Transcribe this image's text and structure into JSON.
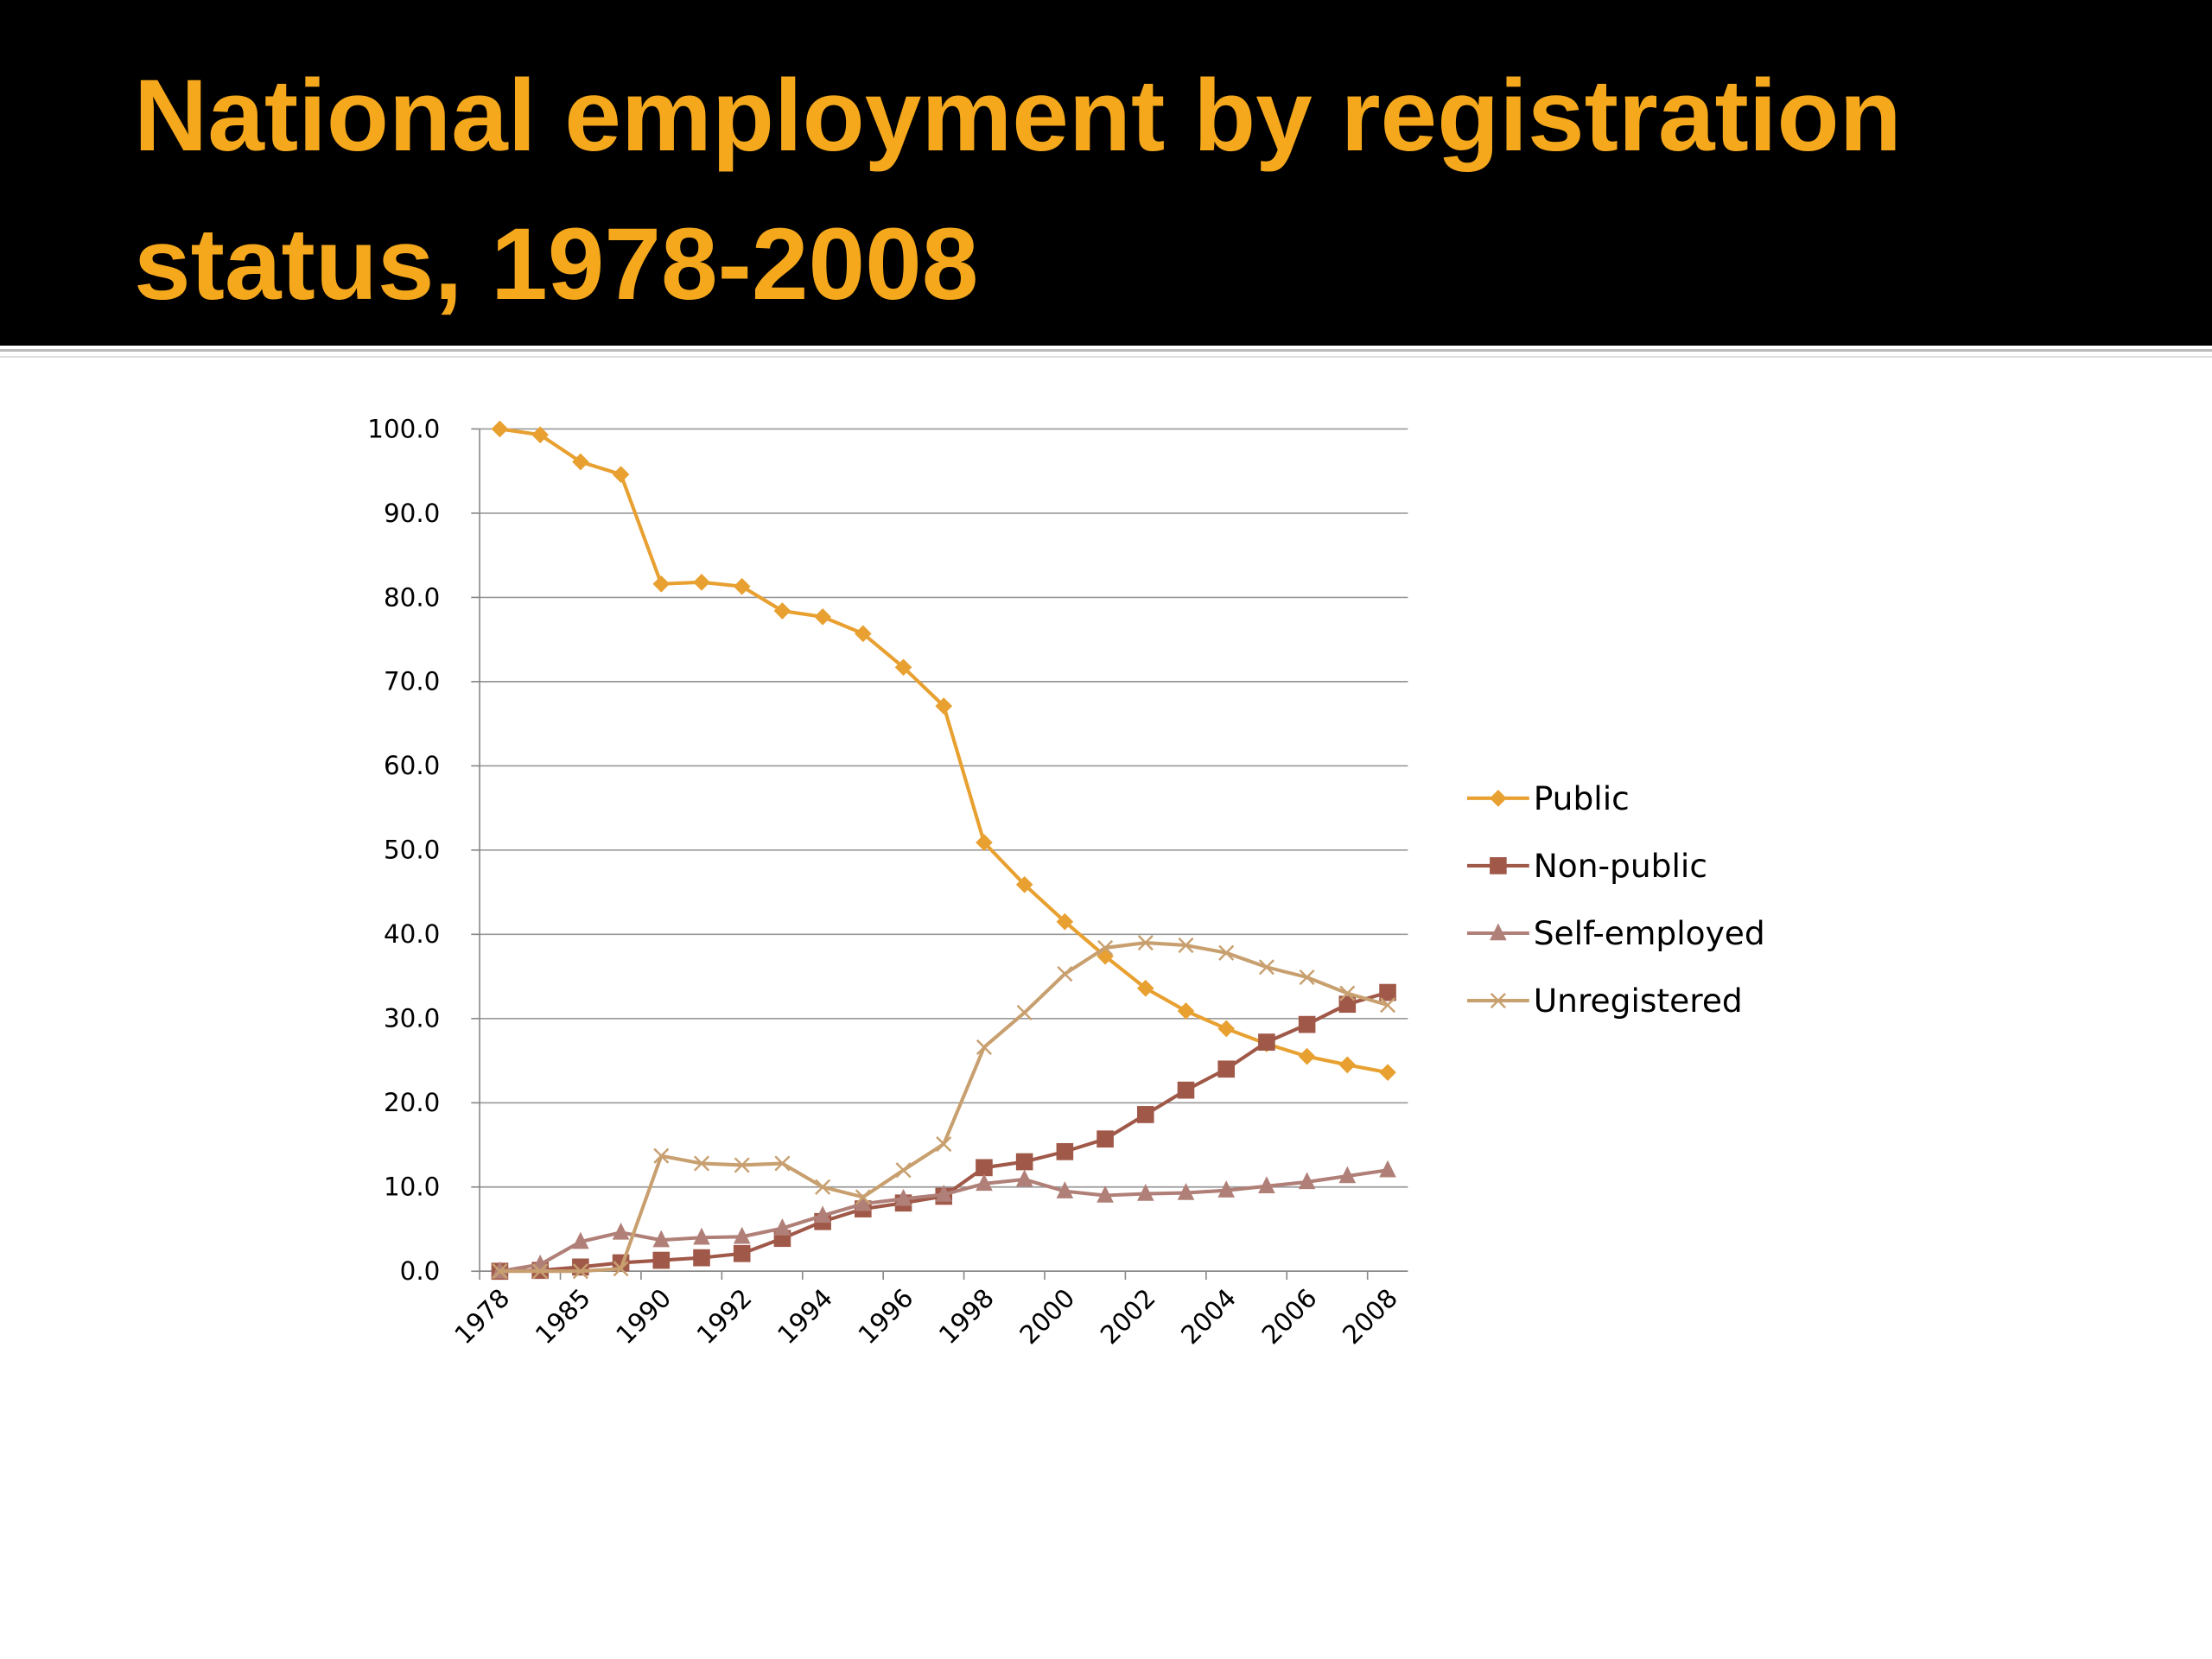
{
  "chart_data": {
    "type": "line",
    "title": "National employment by registration status, 1978-2008",
    "categories": [
      "1978",
      null,
      "1985",
      null,
      "1990",
      null,
      "1992",
      null,
      "1994",
      null,
      "1996",
      null,
      "1998",
      null,
      "2000",
      null,
      "2002",
      null,
      "2004",
      null,
      "2006",
      null,
      "2008"
    ],
    "series": [
      {
        "name": "Public",
        "color": "#e8a030",
        "marker": "diamond",
        "values": [
          100,
          99.3,
          96.1,
          94.6,
          81.6,
          81.8,
          81.3,
          78.4,
          77.7,
          75.7,
          71.7,
          67.1,
          50.9,
          45.9,
          41.5,
          37.4,
          33.6,
          30.9,
          28.8,
          27.0,
          25.5,
          24.5,
          23.6
        ]
      },
      {
        "name": "Non-public",
        "color": "#a05848",
        "marker": "square",
        "values": [
          0,
          0.1,
          0.5,
          1.0,
          1.3,
          1.6,
          2.1,
          3.9,
          5.9,
          7.4,
          8.1,
          8.9,
          12.3,
          13.0,
          14.2,
          15.7,
          18.6,
          21.5,
          24.0,
          27.2,
          29.3,
          31.7,
          33.1
        ]
      },
      {
        "name": "Self-employed",
        "color": "#b08078",
        "marker": "triangle",
        "values": [
          0,
          0.8,
          3.5,
          4.6,
          3.7,
          4.0,
          4.1,
          5.1,
          6.6,
          8.0,
          8.6,
          9.1,
          10.4,
          10.9,
          9.5,
          9.0,
          9.2,
          9.3,
          9.6,
          10.1,
          10.6,
          11.3,
          12.0
        ]
      },
      {
        "name": "Unregistered",
        "color": "#c8a070",
        "marker": "x",
        "values": [
          0,
          0,
          0,
          0.3,
          13.7,
          12.8,
          12.6,
          12.8,
          10.0,
          8.8,
          12.0,
          15.1,
          26.6,
          30.7,
          35.3,
          38.4,
          39.0,
          38.7,
          37.8,
          36.1,
          34.9,
          33.0,
          31.6
        ]
      }
    ],
    "ylim": [
      0,
      100
    ],
    "yticks": [
      {
        "value": 0,
        "label": "0.0"
      },
      {
        "value": 10,
        "label": "10.0"
      },
      {
        "value": 20,
        "label": "20.0"
      },
      {
        "value": 30,
        "label": "30.0"
      },
      {
        "value": 40,
        "label": "40.0"
      },
      {
        "value": 50,
        "label": "50.0"
      },
      {
        "value": 60,
        "label": "60.0"
      },
      {
        "value": 70,
        "label": "70.0"
      },
      {
        "value": 80,
        "label": "80.0"
      },
      {
        "value": 90,
        "label": "90.0"
      },
      {
        "value": 100,
        "label": "100.0"
      }
    ],
    "grid": true,
    "legend": "right"
  }
}
